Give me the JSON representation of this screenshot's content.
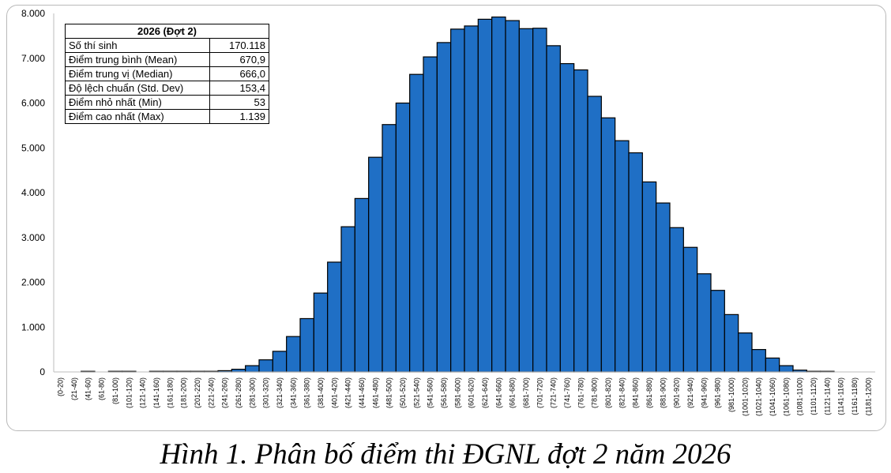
{
  "caption": "Hình 1. Phân bố điểm thi ĐGNL đợt 2 năm 2026",
  "stats": {
    "title": "2026 (Đợt 2)",
    "rows": [
      {
        "label": "Số thí sinh",
        "value": "170.118"
      },
      {
        "label": "Điểm trung bình (Mean)",
        "value": "670,9"
      },
      {
        "label": "Điểm trung vị (Median)",
        "value": "666,0"
      },
      {
        "label": "Độ lệch chuẩn (Std. Dev)",
        "value": "153,4"
      },
      {
        "label": "Điểm nhỏ nhất (Min)",
        "value": "53"
      },
      {
        "label": "Điểm cao nhất (Max)",
        "value": "1.139"
      }
    ]
  },
  "chart_data": {
    "type": "bar",
    "title": "",
    "xlabel": "",
    "ylabel": "",
    "ylim": [
      0,
      8000
    ],
    "yticks": [
      "0",
      "1.000",
      "2.000",
      "3.000",
      "4.000",
      "5.000",
      "6.000",
      "7.000",
      "8.000"
    ],
    "grid": false,
    "bar_color": "#1f6fc5",
    "categories": [
      "(0-20)",
      "(21-40)",
      "(41-60)",
      "(61-80)",
      "(81-100)",
      "(101-120)",
      "(121-140)",
      "(141-160)",
      "(161-180)",
      "(181-200)",
      "(201-220)",
      "(221-240)",
      "(241-260)",
      "(261-280)",
      "(281-300)",
      "(301-320)",
      "(321-340)",
      "(341-360)",
      "(361-380)",
      "(381-400)",
      "(401-420)",
      "(421-440)",
      "(441-460)",
      "(461-480)",
      "(481-500)",
      "(501-520)",
      "(521-540)",
      "(541-560)",
      "(561-580)",
      "(581-600)",
      "(601-620)",
      "(621-640)",
      "(641-660)",
      "(661-680)",
      "(681-700)",
      "(701-720)",
      "(721-740)",
      "(741-760)",
      "(761-780)",
      "(781-800)",
      "(801-820)",
      "(821-840)",
      "(841-860)",
      "(861-880)",
      "(881-900)",
      "(901-920)",
      "(921-940)",
      "(941-960)",
      "(961-980)",
      "(981-1000)",
      "(1001-1020)",
      "(1021-1040)",
      "(1041-1060)",
      "(1061-1080)",
      "(1081-1100)",
      "(1101-1120)",
      "(1121-1140)",
      "(1141-1160)",
      "(1161-1180)",
      "(1181-1200)"
    ],
    "values": [
      0,
      0,
      2,
      0,
      2,
      2,
      0,
      1,
      1,
      3,
      5,
      10,
      28,
      60,
      140,
      270,
      460,
      790,
      1190,
      1760,
      2450,
      3240,
      3870,
      4790,
      5520,
      6000,
      6640,
      7030,
      7350,
      7650,
      7720,
      7870,
      7920,
      7840,
      7660,
      7670,
      7280,
      6880,
      6740,
      6150,
      5670,
      5160,
      4890,
      4240,
      3770,
      3220,
      2780,
      2190,
      1820,
      1280,
      870,
      500,
      310,
      140,
      40,
      8,
      1,
      0,
      0,
      0
    ]
  }
}
